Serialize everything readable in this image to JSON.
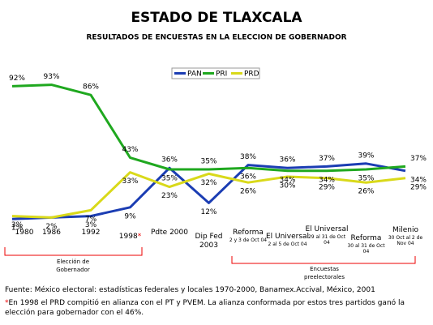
{
  "chart_data": {
    "type": "line",
    "title": "ESTADO DE TLAXCALA",
    "subtitle": "RESULTADOS DE ENCUESTAS EN LA ELECCION DE GOBERNADOR",
    "categories": [
      "1980",
      "1986",
      "1992",
      "1998",
      "Pdte 2000",
      "Dip Fed 2003",
      "Reforma",
      "El Universal",
      "El Universal",
      "Reforma",
      "Milenio"
    ],
    "x_sublabels": [
      null,
      null,
      null,
      null,
      null,
      null,
      "2 y 3 de Oct 04",
      "2 al 5 de Oct 04",
      "29 al 31 de Oct 04",
      "30 al 31 de Oct 04",
      "30 Oct al 2 de Nov 04"
    ],
    "ylim": [
      0,
      100
    ],
    "series": [
      {
        "name": "PAN",
        "color": "#1b3db3",
        "values": [
          1,
          2,
          3,
          9,
          36,
          12,
          38,
          36,
          37,
          39,
          34
        ],
        "value_labels": [
          "1%",
          "2%",
          "3%",
          "9%",
          "36%",
          "12%",
          "38%",
          "36%",
          "37%",
          "39%",
          "34%"
        ]
      },
      {
        "name": "PRI",
        "color": "#1fa81f",
        "values": [
          92,
          93,
          86,
          43,
          35,
          35,
          36,
          34,
          34,
          35,
          37
        ],
        "value_labels": [
          "92%",
          "93%",
          "86%",
          "43%",
          "35%",
          "35%",
          "36%",
          "34%",
          "34%",
          "35%",
          "37%"
        ]
      },
      {
        "name": "PRD",
        "color": "#d9d91a",
        "values": [
          3,
          2,
          7,
          33,
          23,
          32,
          26,
          30,
          29,
          26,
          29
        ],
        "value_labels": [
          "3%",
          null,
          "7%",
          "33%",
          "23%",
          "32%",
          "26%",
          "30%",
          "29%",
          "26%",
          "29%"
        ]
      }
    ],
    "legend": "top-center",
    "footnote_marker": "*",
    "annotations": [
      "Elección de Gobernador",
      "Encuestas preelectorales"
    ],
    "source": "Fuente: México electoral: estadísticas federales y locales 1970-2000, Banamex.Accival, México, 2001",
    "footnote": "En 1998 el PRD compitió en alianza con el PT y PVEM. La alianza conformada por estos tres partidos ganó la elección para gobernador con el 46%."
  }
}
